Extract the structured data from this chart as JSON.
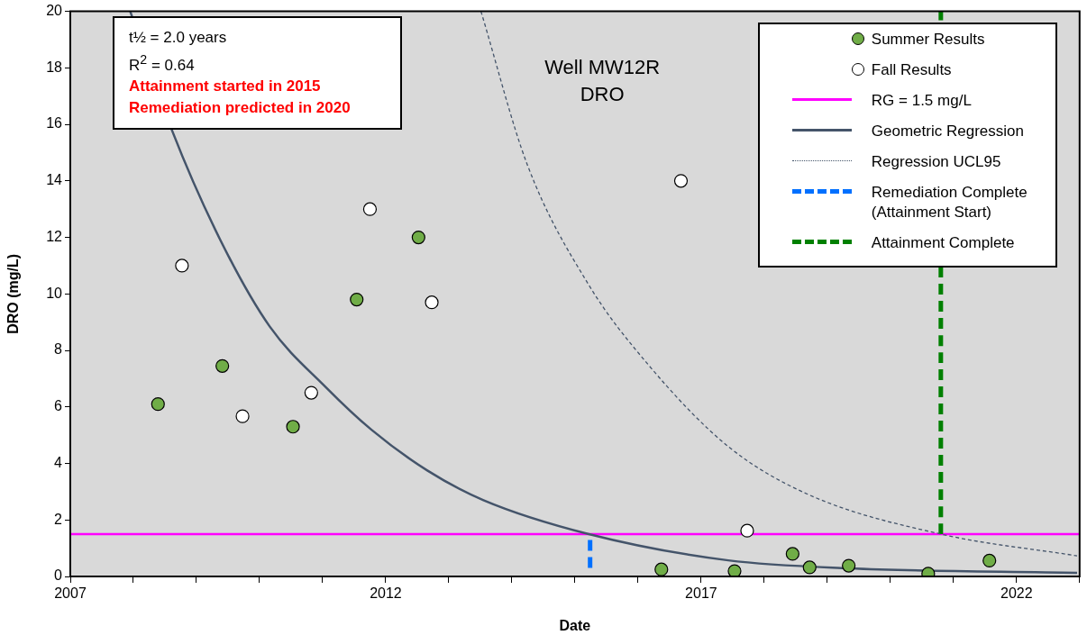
{
  "chart_data": {
    "type": "scatter",
    "title": "Well MW12R\nDRO",
    "xlabel": "Date",
    "ylabel": "DRO (mg/L)",
    "annotations": [
      "t½ = 2.0 years",
      "R$^{2}$ = 0.64",
      "Attainment started in 2015",
      "Remediation predicted in 2020"
    ],
    "xlim": [
      2007,
      2023
    ],
    "xticks": [
      2007,
      {
        "value": 2008,
        "label": null
      },
      {
        "value": 2009,
        "label": null
      },
      {
        "value": 2010,
        "label": null
      },
      {
        "value": 2011,
        "label": null
      },
      2012,
      {
        "value": 2013,
        "label": null
      },
      {
        "value": 2014,
        "label": null
      },
      {
        "value": 2015,
        "label": null
      },
      {
        "value": 2016,
        "label": null
      },
      2017,
      {
        "value": 2018,
        "label": null
      },
      {
        "value": 2019,
        "label": null
      },
      {
        "value": 2020,
        "label": null
      },
      {
        "value": 2021,
        "label": null
      },
      2022,
      {
        "value": 2023,
        "label": null
      }
    ],
    "ylim": [
      0,
      20
    ],
    "yticks": [
      0,
      2,
      4,
      6,
      8,
      10,
      12,
      14,
      16,
      18,
      20
    ],
    "grid": false,
    "legend": "top right",
    "ref_lines": [
      {
        "axis": "y",
        "value": 1.5,
        "label": "RG = 1.5 mg/L",
        "color": "#ff00ff"
      }
    ],
    "series": [
      {
        "name": "Summer Results",
        "marker": "circle",
        "color": "#70ad47",
        "x": [
          2008.39,
          2009.41,
          2010.53,
          2011.54,
          2012.52,
          2016.37,
          2017.53,
          2018.45,
          2018.72,
          2019.34,
          2020.6,
          2021.57
        ],
        "values": [
          6.1,
          7.45,
          5.3,
          9.8,
          12.0,
          0.25,
          0.19,
          0.8,
          0.32,
          0.38,
          0.1,
          0.56
        ]
      },
      {
        "name": "Fall Results",
        "marker": "circle",
        "color": "#ffffff",
        "x": [
          2008.77,
          2009.73,
          2010.82,
          2011.75,
          2012.73,
          2016.68,
          2017.73
        ],
        "values": [
          11.0,
          5.67,
          6.5,
          13.0,
          9.7,
          14.0,
          1.62
        ]
      },
      {
        "name": "Geometric Regression",
        "type": "line",
        "marker": "none",
        "line_style": "solid",
        "color": "#44546a",
        "x": [
          2007.95,
          2008.61,
          2009.38,
          2010.16,
          2011.05,
          2011.77,
          2012.66,
          2013.55,
          2015.22,
          2017.43,
          2019.34,
          2022.96
        ],
        "values": [
          20,
          15.8,
          11.9,
          8.85,
          6.7,
          5.2,
          3.75,
          2.7,
          1.5,
          0.57,
          0.29,
          0.13
        ]
      },
      {
        "name": "Regression UCL95",
        "type": "line",
        "marker": "none",
        "line_style": "dotted",
        "color": "#44546a",
        "x": [
          2013.51,
          2014.24,
          2015.21,
          2016.16,
          2017.43,
          2018.7,
          2020.8,
          2022.96
        ],
        "values": [
          20,
          14.6,
          10.35,
          7.5,
          4.6,
          2.9,
          1.5,
          0.73
        ]
      },
      {
        "name": "Remediation Complete\n(Attainment Start)",
        "type": "line",
        "marker": "none",
        "line_style": "dashed",
        "color": "#0070ff",
        "x": [
          2015.24,
          2015.24
        ],
        "values": [
          0.3,
          1.5
        ]
      },
      {
        "name": "Attainment Complete",
        "type": "line",
        "marker": "none",
        "line_style": "dashed",
        "color": "#008000",
        "x": [
          2020.8,
          2020.8
        ],
        "values": [
          1.5,
          20
        ]
      }
    ]
  }
}
